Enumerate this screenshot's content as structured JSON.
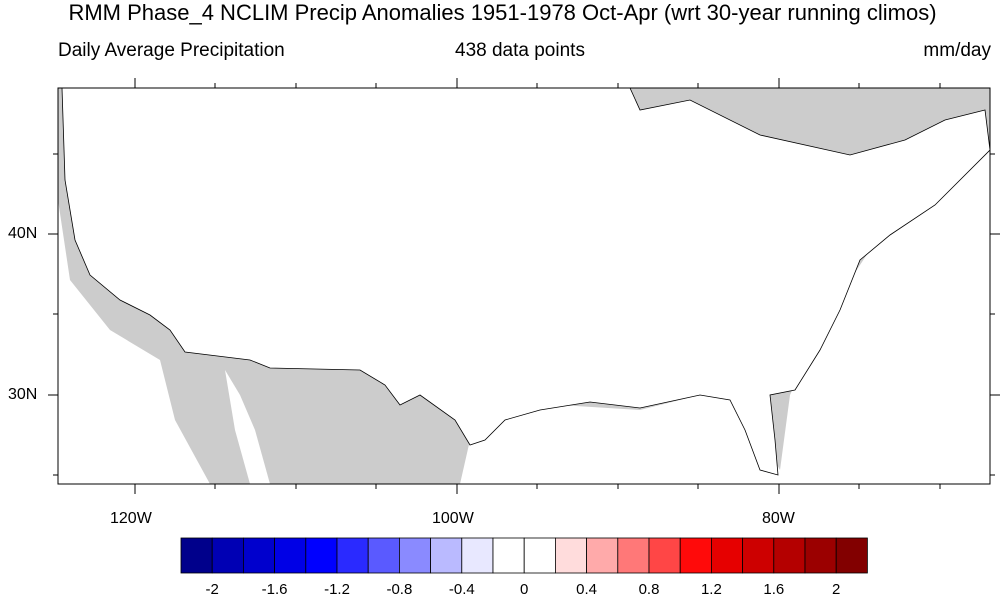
{
  "title": "RMM Phase_4 NCLIM Precip Anomalies 1951-1978 Oct-Apr (wrt 30-year running climos)",
  "subtitle_left": "Daily Average Precipitation",
  "subtitle_center": "438 data points",
  "subtitle_right": "mm/day",
  "map": {
    "region": "Contiguous United States",
    "lat_range": [
      24.5,
      49.5
    ],
    "lon_range": [
      -125,
      -67
    ],
    "lat_labels": [
      "40N",
      "30N"
    ],
    "lon_labels": [
      "120W",
      "100W",
      "80W"
    ],
    "colors": {
      "land_masked": "#cccccc",
      "water": "#ffffff"
    }
  },
  "colorbar": {
    "labels": [
      "-2",
      "-1.6",
      "-1.2",
      "-0.8",
      "-0.4",
      "0",
      "0.4",
      "0.8",
      "1.2",
      "1.6",
      "2"
    ],
    "colors": [
      "#00008b",
      "#0000b4",
      "#0000cd",
      "#0000e6",
      "#0000ff",
      "#2a2aff",
      "#5a5aff",
      "#8a8aff",
      "#babaff",
      "#e8e8ff",
      "#ffffff",
      "#ffffff",
      "#ffdcdc",
      "#ffaaaa",
      "#ff7878",
      "#ff4646",
      "#ff0a0a",
      "#e60000",
      "#cd0000",
      "#b40000",
      "#9b0000",
      "#820000"
    ]
  }
}
